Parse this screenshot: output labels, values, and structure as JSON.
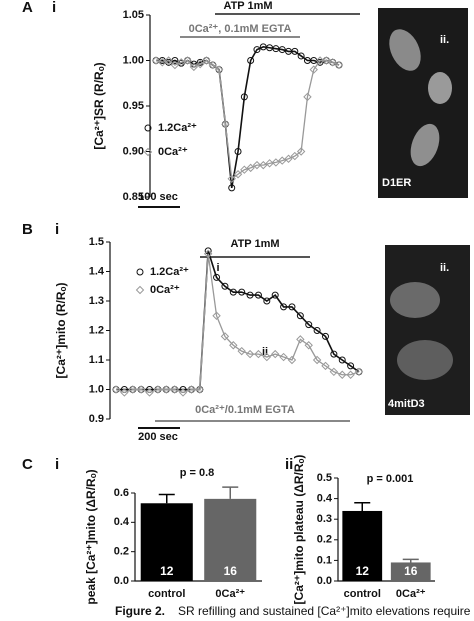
{
  "chart_data": [
    {
      "type": "line",
      "panel": "A",
      "subpanel": "i",
      "ylabel": "[Ca²⁺]SR (R/Rₒ)",
      "ylim": [
        0.85,
        1.05
      ],
      "yticks": [
        {
          "value": 0.85,
          "label": "0.85"
        },
        {
          "value": 0.9,
          "label": "0.90"
        },
        {
          "value": 0.95,
          "label": "0.95"
        },
        {
          "value": 1.0,
          "label": "1.00"
        },
        {
          "value": 1.05,
          "label": "1.05"
        }
      ],
      "annotations": [
        "ATP 1mM",
        "0Ca²⁺, 0.1mM EGTA",
        "100 sec"
      ],
      "series": [
        {
          "name": "1.2Ca²⁺",
          "color": "#111111",
          "marker": "circle",
          "values": [
            1.0,
            1.0,
            0.998,
            1.0,
            0.997,
            1.0,
            0.996,
            0.998,
            1.0,
            0.995,
            0.99,
            0.93,
            0.86,
            0.9,
            0.96,
            1.0,
            1.012,
            1.015,
            1.014,
            1.013,
            1.012,
            1.01,
            1.01,
            1.005,
            1.0,
            1.0,
            0.998,
            1.0,
            0.998,
            0.995
          ]
        },
        {
          "name": "0Ca²⁺",
          "color": "#999999",
          "marker": "diamond",
          "values": [
            1.0,
            0.998,
            1.0,
            0.995,
            0.998,
            1.0,
            0.993,
            0.996,
            1.0,
            0.995,
            0.99,
            0.93,
            0.87,
            0.875,
            0.88,
            0.882,
            0.885,
            0.885,
            0.887,
            0.888,
            0.89,
            0.892,
            0.895,
            0.9,
            0.96,
            0.99,
            1.0,
            1.0,
            0.998,
            0.995
          ]
        }
      ]
    },
    {
      "type": "line",
      "panel": "B",
      "subpanel": "i",
      "ylabel": "[Ca²⁺]mito (R/Rₒ)",
      "ylim": [
        0.9,
        1.5
      ],
      "yticks": [
        0.9,
        {
          "value": 1.0,
          "label": "1.0"
        },
        1.1,
        1.2,
        1.3,
        1.4,
        1.5
      ],
      "annotations": [
        "ATP 1mM",
        "i",
        "ii",
        "0Ca²⁺/0.1mM EGTA",
        "200 sec"
      ],
      "series": [
        {
          "name": "1.2Ca²⁺",
          "color": "#111111",
          "marker": "circle",
          "values": [
            1.0,
            1.0,
            1.0,
            1.0,
            1.0,
            1.0,
            1.0,
            1.0,
            1.0,
            1.0,
            1.0,
            1.47,
            1.38,
            1.35,
            1.33,
            1.33,
            1.32,
            1.32,
            1.3,
            1.32,
            1.28,
            1.28,
            1.25,
            1.22,
            1.2,
            1.18,
            1.12,
            1.1,
            1.08,
            1.06
          ]
        },
        {
          "name": "0Ca²⁺",
          "color": "#999999",
          "marker": "diamond",
          "values": [
            1.0,
            0.99,
            1.0,
            1.0,
            0.99,
            1.0,
            1.0,
            1.0,
            0.99,
            1.0,
            1.0,
            1.46,
            1.25,
            1.18,
            1.15,
            1.13,
            1.12,
            1.12,
            1.11,
            1.12,
            1.11,
            1.1,
            1.17,
            1.15,
            1.1,
            1.08,
            1.06,
            1.05,
            1.05,
            1.06
          ]
        }
      ]
    },
    {
      "type": "bar",
      "panel": "C",
      "subpanel": "i",
      "ylabel": "peak [Ca²⁺]mito (ΔR/Rₒ)",
      "ylim": [
        0,
        0.6
      ],
      "yticks": [
        {
          "value": 0,
          "label": "0.0"
        },
        0.2,
        0.4,
        0.6
      ],
      "annotations": [
        "p = 0.8"
      ],
      "categories": [
        "control",
        "0Ca²⁺"
      ],
      "values": [
        0.53,
        0.56
      ],
      "errors": [
        0.06,
        0.08
      ],
      "bar_labels": [
        "12",
        "16"
      ],
      "colors": [
        "#000000",
        "#666666"
      ]
    },
    {
      "type": "bar",
      "subpanel": "ii",
      "ylabel": "[Ca²⁺]mito plateau (ΔR/Rₒ)",
      "ylim": [
        0,
        0.5
      ],
      "yticks": [
        {
          "value": 0,
          "label": "0.0"
        },
        0.1,
        0.2,
        0.3,
        0.4,
        0.5
      ],
      "annotations": [
        "p = 0.001"
      ],
      "categories": [
        "control",
        "0Ca²⁺"
      ],
      "values": [
        0.34,
        0.09
      ],
      "errors": [
        0.04,
        0.015
      ],
      "bar_labels": [
        "12",
        "16"
      ],
      "colors": [
        "#000000",
        "#666666"
      ]
    }
  ],
  "images": [
    {
      "label": "ii.",
      "caption": "D1ER"
    },
    {
      "label": "ii.",
      "caption": "4mitD3"
    }
  ],
  "figure_label": "Figure 2.",
  "caption": "SR refilling and sustained [Ca²⁺]mito elevations require"
}
